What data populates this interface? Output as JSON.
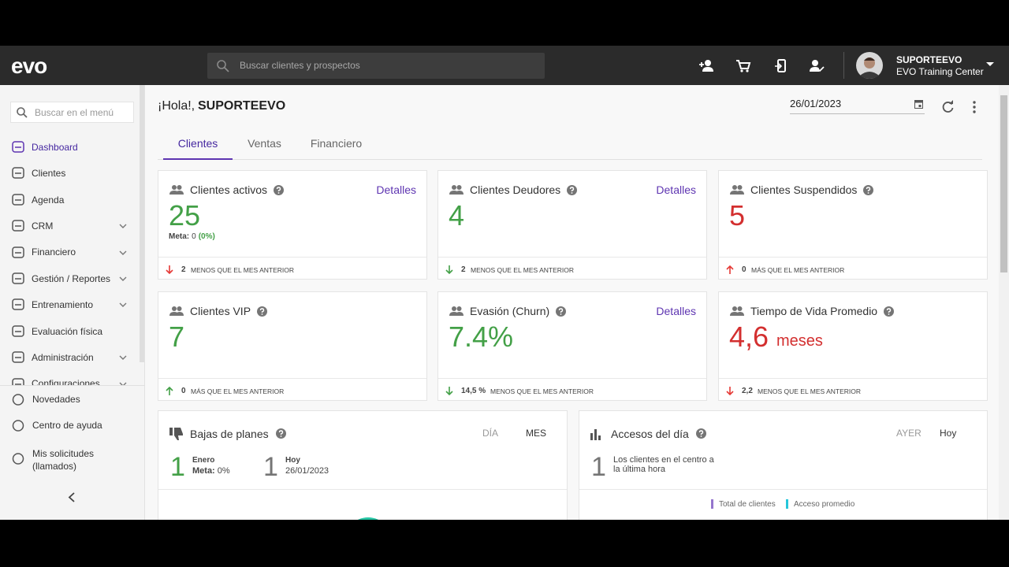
{
  "header": {
    "logo": "evo",
    "search_placeholder": "Buscar clientes y prospectos",
    "user_name": "SUPORTEEVO",
    "organization": "EVO Training Center"
  },
  "sidebar": {
    "search_placeholder": "Buscar en el menú",
    "menu": [
      {
        "label": "Dashboard",
        "active": true
      },
      {
        "label": "Clientes"
      },
      {
        "label": "Agenda"
      },
      {
        "label": "CRM",
        "expandable": true
      },
      {
        "label": "Financiero",
        "expandable": true
      },
      {
        "label": "Gestión / Reportes",
        "expandable": true
      },
      {
        "label": "Entrenamiento",
        "expandable": true
      },
      {
        "label": "Evaluación física"
      },
      {
        "label": "Administración",
        "expandable": true
      },
      {
        "label": "Configuraciones",
        "expandable": true
      }
    ],
    "footer_menu": [
      "Novedades",
      "Centro de ayuda",
      "Mis solicitudes (llamados)"
    ]
  },
  "main": {
    "greeting": "¡Hola!,",
    "user_name": "SUPORTEEVO",
    "date": "26/01/2023",
    "tabs": [
      "Clientes",
      "Ventas",
      "Financiero"
    ],
    "active_tab": 0,
    "cards": [
      {
        "title": "Clientes activos",
        "link": "Detalles",
        "value": "25",
        "value_color": "#43a047",
        "meta": {
          "label": "Meta:",
          "value": "0",
          "percent": "(0%)"
        },
        "trend": {
          "direction": "down",
          "color": "#e53935",
          "amount": "2",
          "text": "MENOS QUE EL MES ANTERIOR"
        }
      },
      {
        "title": "Clientes Deudores",
        "link": "Detalles",
        "value": "4",
        "value_color": "#43a047",
        "trend": {
          "direction": "down",
          "color": "#43a047",
          "amount": "2",
          "text": "MENOS QUE EL MES ANTERIOR"
        }
      },
      {
        "title": "Clientes Suspendidos",
        "value": "5",
        "value_color": "#d32f2f",
        "trend": {
          "direction": "up",
          "color": "#e53935",
          "amount": "0",
          "text": "MÁS QUE EL MES ANTERIOR"
        }
      },
      {
        "title": "Clientes VIP",
        "value": "7",
        "value_color": "#43a047",
        "trend": {
          "direction": "up",
          "color": "#43a047",
          "amount": "0",
          "text": "MÁS QUE EL MES ANTERIOR"
        }
      },
      {
        "title": "Evasión (Churn)",
        "link": "Detalles",
        "value": "7.4%",
        "value_color": "#43a047",
        "trend": {
          "direction": "down",
          "color": "#43a047",
          "amount": "14,5 %",
          "text": "MENOS QUE EL MES ANTERIOR"
        }
      },
      {
        "title": "Tiempo de Vida Promedio",
        "value": "4,6",
        "unit": "meses",
        "value_color": "#d32f2f",
        "trend": {
          "direction": "down",
          "color": "#e53935",
          "amount": "2,2",
          "text": "MENOS QUE EL MES ANTERIOR"
        }
      }
    ],
    "panels": [
      {
        "title": "Bajas de planes",
        "toggles": [
          "DÍA",
          "MES"
        ],
        "active_toggle": 1,
        "stats": [
          {
            "value": "1",
            "color": "#43a047",
            "label": "Enero",
            "detail_label": "Meta:",
            "detail": "0%"
          },
          {
            "value": "1",
            "color": "#757575",
            "label": "Hoy",
            "detail": "26/01/2023"
          }
        ]
      },
      {
        "title": "Accesos del día",
        "toggles": [
          "AYER",
          "Hoy"
        ],
        "active_toggle": 1,
        "stats": [
          {
            "value": "1",
            "color": "#757575",
            "label": "Los clientes en el centro a la última hora"
          }
        ],
        "legend": [
          {
            "name": "Total de clientes",
            "color": "#9575cd"
          },
          {
            "name": "Acceso promedio",
            "color": "#26c6da"
          }
        ]
      }
    ]
  }
}
